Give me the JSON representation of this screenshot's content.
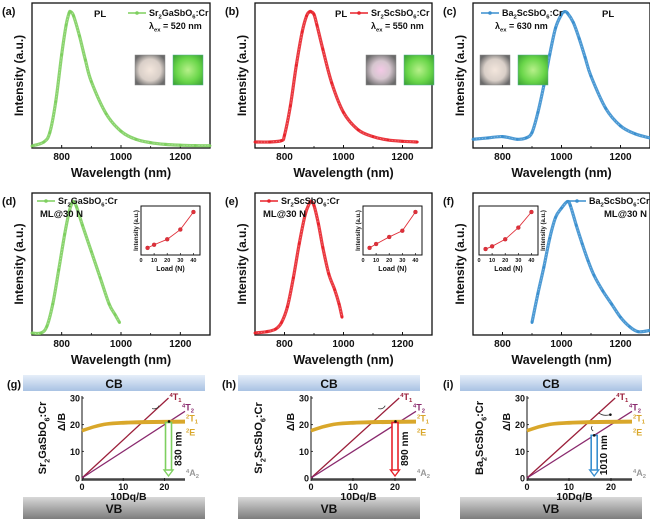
{
  "colors": {
    "green": "#7ecf5f",
    "red": "#e8232b",
    "blue": "#3a8fcf",
    "t1_line": "#9b1f3a",
    "t2_line": "#8a2a6e",
    "e_band": "#d9a72a",
    "a2_line": "#888888",
    "inset_marker": "#e0303a",
    "cb_bar": "#c8d8ee",
    "vb_bar": "#9a9a9a"
  },
  "chart_data": [
    {
      "id": "a",
      "panel_label": "(a)",
      "type": "line",
      "color_key": "green",
      "title": "PL",
      "legend": {
        "label": "Sr2GaSbO6:Cr",
        "formula_main": "Sr",
        "sub1": "2",
        "mid": "GaSbO",
        "sub2": "6",
        "tail": ":Cr",
        "extra": "λex = 520 nm",
        "extra_main": "λ",
        "extra_sub": "ex",
        "extra_tail": " = 520 nm",
        "placement": "top-right"
      },
      "xlabel": "Wavelength (nm)",
      "ylabel": "Intensity (a.u.)",
      "xlim": [
        700,
        1300
      ],
      "ylim": [
        0,
        1.05
      ],
      "xticks": [
        800,
        1000,
        1200
      ],
      "peak_nm": 830,
      "x": [
        700,
        740,
        760,
        780,
        800,
        815,
        825,
        830,
        840,
        860,
        880,
        900,
        950,
        1000,
        1050,
        1100,
        1150,
        1200,
        1250,
        1300
      ],
      "y": [
        0.0,
        0.03,
        0.1,
        0.33,
        0.68,
        0.9,
        0.99,
        1.0,
        0.97,
        0.82,
        0.64,
        0.48,
        0.24,
        0.11,
        0.05,
        0.025,
        0.012,
        0.006,
        0.003,
        0.002
      ],
      "photos": [
        "daylight-photo",
        "uv-photo"
      ],
      "photos_placement": "right"
    },
    {
      "id": "b",
      "panel_label": "(b)",
      "type": "line",
      "color_key": "red",
      "title": "PL",
      "legend": {
        "label": "Sr2ScSbO6:Cr",
        "formula_main": "Sr",
        "sub1": "2",
        "mid": "ScSbO",
        "sub2": "6",
        "tail": ":Cr",
        "extra": "λex = 550 nm",
        "extra_main": "λ",
        "extra_sub": "ex",
        "extra_tail": " = 550 nm",
        "placement": "top-right"
      },
      "xlabel": "Wavelength (nm)",
      "ylabel": "Intensity (a.u.)",
      "xlim": [
        700,
        1300
      ],
      "ylim": [
        0,
        1.05
      ],
      "xticks": [
        800,
        1000,
        1200
      ],
      "peak_nm": 890,
      "x": [
        700,
        750,
        790,
        800,
        820,
        840,
        860,
        875,
        885,
        890,
        900,
        910,
        930,
        960,
        1000,
        1050,
        1100,
        1150,
        1200,
        1250
      ],
      "y": [
        0.03,
        0.03,
        0.04,
        0.08,
        0.3,
        0.6,
        0.85,
        0.97,
        1.0,
        1.0,
        0.98,
        0.9,
        0.72,
        0.47,
        0.25,
        0.12,
        0.07,
        0.045,
        0.035,
        0.03
      ],
      "photos": [
        "daylight-photo",
        "uv-photo"
      ],
      "photos_placement": "right"
    },
    {
      "id": "c",
      "panel_label": "(c)",
      "type": "line",
      "color_key": "blue",
      "title": "PL",
      "legend": {
        "label": "Ba2ScSbO6:Cr",
        "formula_main": "Ba",
        "sub1": "2",
        "mid": "ScSbO",
        "sub2": "6",
        "tail": ":Cr",
        "extra": "λex = 630 nm",
        "extra_main": "λ",
        "extra_sub": "ex",
        "extra_tail": " = 630 nm",
        "placement": "top-left"
      },
      "xlabel": "Wavelength (nm)",
      "ylabel": "Intensity (a.u.)",
      "xlim": [
        700,
        1300
      ],
      "ylim": [
        0,
        1.05
      ],
      "xticks": [
        800,
        1000,
        1200
      ],
      "peak_nm": 1010,
      "x": [
        700,
        750,
        800,
        850,
        880,
        900,
        920,
        940,
        960,
        980,
        1000,
        1010,
        1020,
        1040,
        1060,
        1080,
        1100,
        1150,
        1200,
        1250,
        1300
      ],
      "y": [
        0.05,
        0.06,
        0.07,
        0.05,
        0.06,
        0.1,
        0.25,
        0.45,
        0.68,
        0.88,
        0.98,
        1.0,
        0.99,
        0.92,
        0.8,
        0.66,
        0.52,
        0.28,
        0.15,
        0.09,
        0.06
      ],
      "photos": [
        "daylight-photo",
        "uv-photo"
      ],
      "photos_placement": "left"
    },
    {
      "id": "d",
      "panel_label": "(d)",
      "type": "line",
      "color_key": "green",
      "title": "ML@30 N",
      "legend": {
        "label": "Sr2GaSbO6:Cr",
        "formula_main": "Sr",
        "sub1": "2",
        "mid": "GaSbO",
        "sub2": "6",
        "tail": ":Cr",
        "placement": "top-left"
      },
      "xlabel": "Wavelength (nm)",
      "ylabel": "Intensity (a.u.)",
      "xlim": [
        700,
        1300
      ],
      "ylim": [
        0,
        1.05
      ],
      "xticks": [
        800,
        1000,
        1200
      ],
      "peak_nm": 840,
      "x": [
        700,
        730,
        750,
        770,
        790,
        810,
        825,
        835,
        840,
        850,
        870,
        900,
        930,
        960,
        980,
        995
      ],
      "y": [
        0.0,
        0.0,
        0.05,
        0.22,
        0.48,
        0.75,
        0.92,
        0.99,
        1.0,
        0.96,
        0.82,
        0.62,
        0.42,
        0.22,
        0.14,
        0.08
      ],
      "inset": {
        "placement": "top-right",
        "xlabel": "Load (N)",
        "ylabel": "Intensity (a.u.)",
        "xlim": [
          0,
          45
        ],
        "xticks": [
          0,
          10,
          20,
          30,
          40
        ],
        "x": [
          5,
          10,
          20,
          30,
          40
        ],
        "y": [
          0.08,
          0.16,
          0.3,
          0.55,
          1.0
        ]
      }
    },
    {
      "id": "e",
      "panel_label": "(e)",
      "type": "line",
      "color_key": "red",
      "title": "ML@30 N",
      "legend": {
        "label": "Sr2ScSbO6:Cr",
        "formula_main": "Sr",
        "sub1": "2",
        "mid": "ScSbO",
        "sub2": "6",
        "tail": ":Cr",
        "placement": "top-left"
      },
      "xlabel": "Wavelength (nm)",
      "ylabel": "Intensity (a.u.)",
      "xlim": [
        700,
        1300
      ],
      "ylim": [
        0,
        1.05
      ],
      "xticks": [
        800,
        1000,
        1200
      ],
      "peak_nm": 890,
      "x": [
        700,
        740,
        770,
        790,
        810,
        830,
        850,
        870,
        885,
        890,
        900,
        915,
        930,
        950,
        970,
        985,
        995
      ],
      "y": [
        0.0,
        0.01,
        0.03,
        0.08,
        0.2,
        0.42,
        0.68,
        0.9,
        0.99,
        1.0,
        0.97,
        0.83,
        0.65,
        0.45,
        0.33,
        0.22,
        0.12
      ],
      "inset": {
        "placement": "top-right",
        "xlabel": "Load (N)",
        "ylabel": "Intensity (a.u.)",
        "xlim": [
          0,
          45
        ],
        "xticks": [
          0,
          10,
          20,
          30,
          40
        ],
        "x": [
          5,
          10,
          20,
          30,
          40
        ],
        "y": [
          0.08,
          0.18,
          0.36,
          0.52,
          1.0
        ]
      }
    },
    {
      "id": "f",
      "panel_label": "(f)",
      "type": "line",
      "color_key": "blue",
      "title": "ML@30 N",
      "legend": {
        "label": "Ba2ScSbO6:Cr",
        "formula_main": "Ba",
        "sub1": "2",
        "mid": "ScSbO",
        "sub2": "6",
        "tail": ":Cr",
        "placement": "top-right"
      },
      "xlabel": "Wavelength (nm)",
      "ylabel": "Intensity (a.u.)",
      "xlim": [
        700,
        1300
      ],
      "ylim": [
        0,
        1.05
      ],
      "xticks": [
        800,
        1000,
        1200
      ],
      "peak_nm": 1020,
      "x": [
        900,
        920,
        940,
        960,
        980,
        1000,
        1020,
        1030,
        1050,
        1070,
        1090,
        1110,
        1140,
        1170,
        1200,
        1230,
        1260,
        1300
      ],
      "y": [
        0.08,
        0.3,
        0.5,
        0.72,
        0.88,
        0.95,
        1.0,
        0.97,
        0.82,
        0.68,
        0.55,
        0.44,
        0.32,
        0.22,
        0.12,
        0.05,
        0.01,
        0.02
      ],
      "inset": {
        "placement": "top-left",
        "xlabel": "Load (N)",
        "ylabel": "Intensity (a.u.)",
        "xlim": [
          0,
          45
        ],
        "xticks": [
          0,
          10,
          20,
          30,
          40
        ],
        "x": [
          5,
          10,
          20,
          30,
          40
        ],
        "y": [
          0.05,
          0.12,
          0.3,
          0.6,
          1.0
        ]
      }
    },
    {
      "id": "g",
      "panel_label": "(g)",
      "type": "line",
      "subtype": "tanabe-sugano",
      "compound": {
        "formula_main": "Sr",
        "sub1": "2",
        "mid": "GaSbO",
        "sub2": "6",
        "tail": ":Cr"
      },
      "arrow_color_key": "green",
      "emission_label": "830 nm",
      "dq_b": 21,
      "cb_label": "CB",
      "vb_label": "VB",
      "xlabel": "10Dq/B",
      "ylabel": "Δ/B",
      "xlim": [
        0,
        25
      ],
      "ylim": [
        0,
        30
      ],
      "xticks": [
        0,
        10,
        20
      ],
      "yticks": [
        0,
        10,
        20,
        30
      ],
      "levels": [
        {
          "name": "4T1",
          "sup": "4",
          "main": "T",
          "sub": "1",
          "x": [
            0,
            21
          ],
          "y": [
            0,
            30
          ]
        },
        {
          "name": "4T2",
          "sup": "4",
          "main": "T",
          "sub": "2",
          "x": [
            0,
            25
          ],
          "y": [
            0,
            25
          ]
        },
        {
          "name": "2T1",
          "sup": "2",
          "main": "T",
          "sub": "1",
          "x": [
            0,
            3,
            6,
            10,
            15,
            25
          ],
          "y": [
            18,
            19.5,
            20.5,
            21,
            21.3,
            21.5
          ]
        },
        {
          "name": "2E",
          "sup": "2",
          "main": "E",
          "sub": "",
          "x": [
            0,
            3,
            6,
            10,
            15,
            25
          ],
          "y": [
            17.5,
            19,
            20,
            20.4,
            20.6,
            20.8
          ]
        },
        {
          "name": "4A2",
          "sup": "4",
          "main": "A",
          "sub": "2",
          "x": [
            0,
            25
          ],
          "y": [
            0,
            0
          ]
        }
      ]
    },
    {
      "id": "h",
      "panel_label": "(h)",
      "type": "line",
      "subtype": "tanabe-sugano",
      "compound": {
        "formula_main": "Sr",
        "sub1": "2",
        "mid": "ScSbO",
        "sub2": "6",
        "tail": ":Cr"
      },
      "arrow_color_key": "red",
      "emission_label": "890 nm",
      "dq_b": 20,
      "cb_label": "CB",
      "vb_label": "VB",
      "xlabel": "10Dq/B",
      "ylabel": "Δ/B",
      "xlim": [
        0,
        25
      ],
      "ylim": [
        0,
        30
      ],
      "xticks": [
        0,
        10,
        20
      ],
      "yticks": [
        0,
        10,
        20,
        30
      ],
      "levels": [
        {
          "name": "4T1",
          "sup": "4",
          "main": "T",
          "sub": "1",
          "x": [
            0,
            21
          ],
          "y": [
            0,
            30
          ]
        },
        {
          "name": "4T2",
          "sup": "4",
          "main": "T",
          "sub": "2",
          "x": [
            0,
            25
          ],
          "y": [
            0,
            25
          ]
        },
        {
          "name": "2T1",
          "sup": "2",
          "main": "T",
          "sub": "1",
          "x": [
            0,
            3,
            6,
            10,
            15,
            25
          ],
          "y": [
            18,
            19.5,
            20.5,
            21,
            21.3,
            21.5
          ]
        },
        {
          "name": "2E",
          "sup": "2",
          "main": "E",
          "sub": "",
          "x": [
            0,
            3,
            6,
            10,
            15,
            25
          ],
          "y": [
            17.5,
            19,
            20,
            20.4,
            20.6,
            20.8
          ]
        },
        {
          "name": "4A2",
          "sup": "4",
          "main": "A",
          "sub": "2",
          "x": [
            0,
            25
          ],
          "y": [
            0,
            0
          ]
        }
      ]
    },
    {
      "id": "i",
      "panel_label": "(i)",
      "type": "line",
      "subtype": "tanabe-sugano",
      "compound": {
        "formula_main": "Ba",
        "sub1": "2",
        "mid": "ScSbO",
        "sub2": "6",
        "tail": ":Cr"
      },
      "arrow_color_key": "blue",
      "emission_label": "1010 nm",
      "dq_b": 16,
      "cb_label": "CB",
      "vb_label": "VB",
      "xlabel": "10Dq/B",
      "ylabel": "Δ/B",
      "xlim": [
        0,
        25
      ],
      "ylim": [
        0,
        30
      ],
      "xticks": [
        0,
        10,
        20
      ],
      "yticks": [
        0,
        10,
        20,
        30
      ],
      "levels": [
        {
          "name": "4T1",
          "sup": "4",
          "main": "T",
          "sub": "1",
          "x": [
            0,
            21
          ],
          "y": [
            0,
            30
          ]
        },
        {
          "name": "4T2",
          "sup": "4",
          "main": "T",
          "sub": "2",
          "x": [
            0,
            25
          ],
          "y": [
            0,
            25
          ]
        },
        {
          "name": "2T1",
          "sup": "2",
          "main": "T",
          "sub": "1",
          "x": [
            0,
            3,
            6,
            10,
            15,
            25
          ],
          "y": [
            18,
            19.5,
            20.5,
            21,
            21.3,
            21.5
          ]
        },
        {
          "name": "2E",
          "sup": "2",
          "main": "E",
          "sub": "",
          "x": [
            0,
            3,
            6,
            10,
            15,
            25
          ],
          "y": [
            17.5,
            19,
            20,
            20.4,
            20.6,
            20.8
          ]
        },
        {
          "name": "4A2",
          "sup": "4",
          "main": "A",
          "sub": "2",
          "x": [
            0,
            25
          ],
          "y": [
            0,
            0
          ]
        }
      ]
    }
  ]
}
